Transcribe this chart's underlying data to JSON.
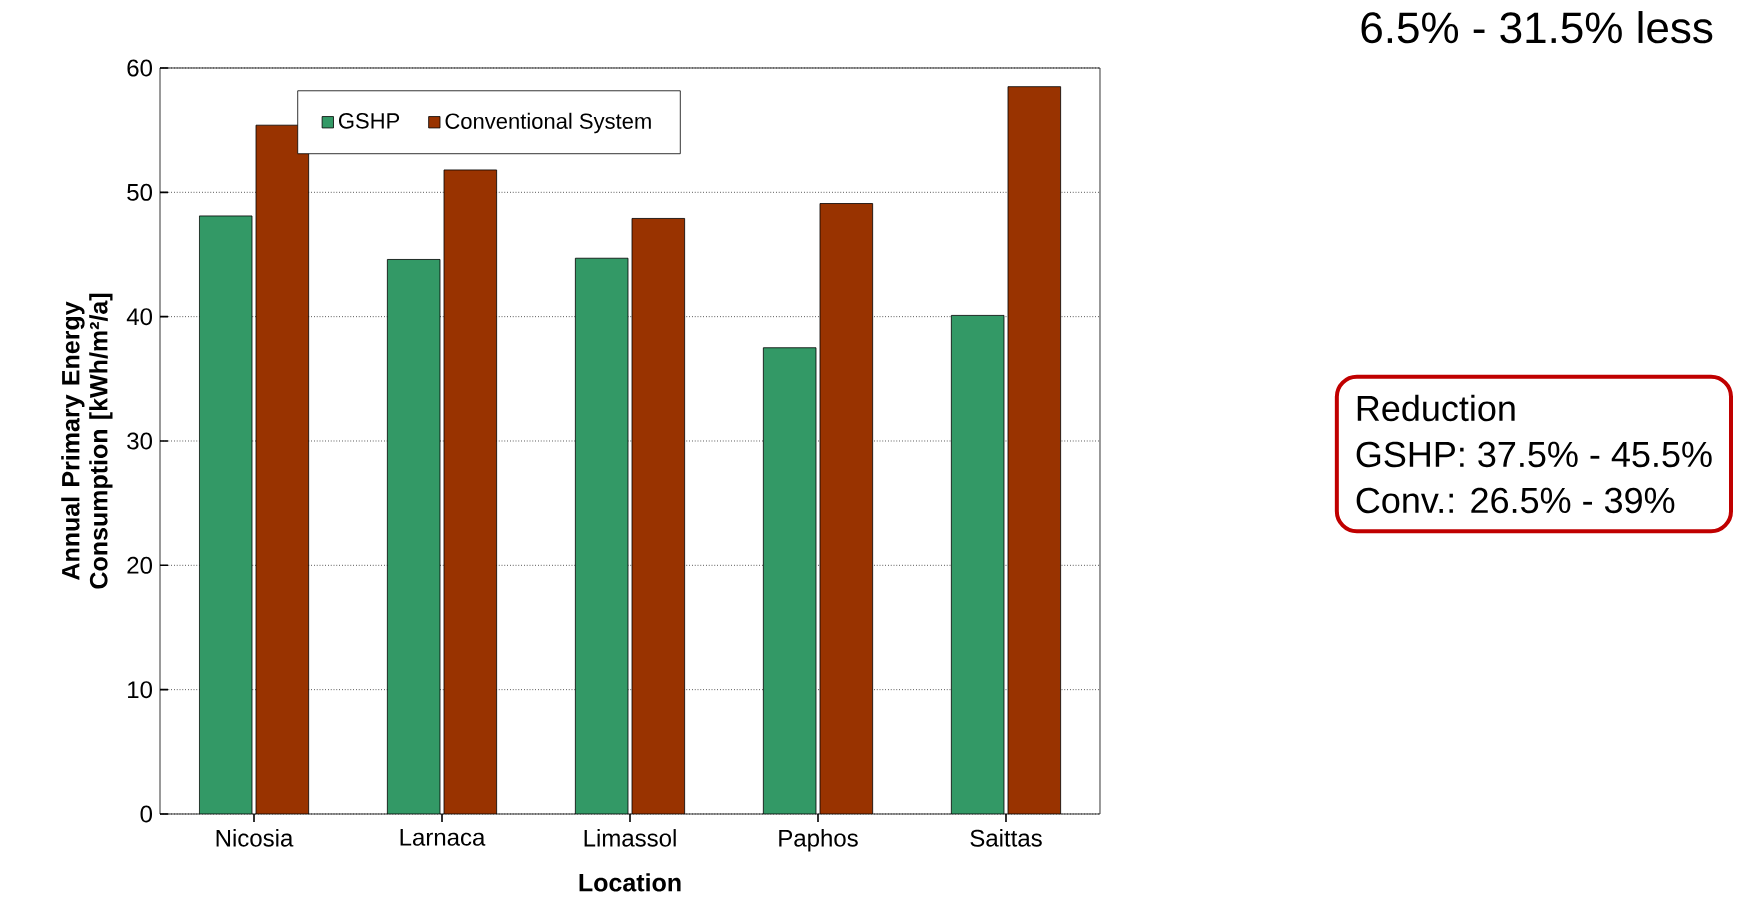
{
  "chart_data": {
    "type": "bar",
    "xlabel": "Location",
    "ylabel": "Annual Primary Energy Consumption [kWh/m²/a]",
    "categories": [
      "Nicosia",
      "Larnaca",
      "Limassol",
      "Paphos",
      "Saittas"
    ],
    "series": [
      {
        "name": "GSHP",
        "color": "#339966",
        "values": [
          48.1,
          44.6,
          44.7,
          37.5,
          40.1
        ]
      },
      {
        "name": "Conventional System",
        "color": "#993300",
        "values": [
          55.4,
          51.8,
          47.9,
          49.1,
          58.5
        ]
      }
    ],
    "ylim": [
      0,
      60
    ],
    "yticks": [
      0,
      10,
      20,
      30,
      40,
      50,
      60
    ],
    "grid": "y",
    "legend": "top",
    "annotations": [
      "6.5% - 31.5% less",
      "Reduction",
      "GSHP: 37.5% - 45.5%",
      "Conv.: 26.5% - 39%"
    ]
  }
}
